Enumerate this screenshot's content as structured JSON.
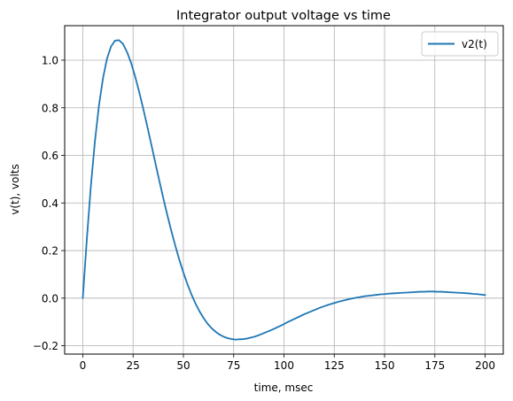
{
  "chart_data": {
    "type": "line",
    "title": "Integrator output voltage vs time",
    "xlabel": "time, msec",
    "ylabel": "v(t), volts",
    "xlim": [
      -9,
      209
    ],
    "ylim": [
      -0.235,
      1.145
    ],
    "xticks": [
      0,
      25,
      50,
      75,
      100,
      125,
      150,
      175,
      200
    ],
    "xtick_labels": [
      "0",
      "25",
      "50",
      "75",
      "100",
      "125",
      "150",
      "175",
      "200"
    ],
    "yticks": [
      -0.2,
      0.0,
      0.2,
      0.4,
      0.6,
      0.8,
      1.0
    ],
    "ytick_labels": [
      "−0.2",
      "0.0",
      "0.2",
      "0.4",
      "0.6",
      "0.8",
      "1.0"
    ],
    "grid": true,
    "legend_position": "top-right",
    "series": [
      {
        "name": "v2(t)",
        "color": "#1f77b4",
        "x": [
          0,
          2,
          4,
          6,
          8,
          10,
          12,
          14,
          16,
          18,
          20,
          22,
          24,
          26,
          28,
          30,
          32,
          34,
          36,
          38,
          40,
          42,
          44,
          46,
          48,
          50,
          52,
          54,
          56,
          58,
          60,
          62,
          64,
          66,
          68,
          70,
          72,
          74,
          76,
          78,
          80,
          82,
          84,
          86,
          88,
          90,
          92,
          94,
          96,
          98,
          100,
          102,
          104,
          106,
          108,
          110,
          112,
          114,
          116,
          118,
          120,
          122,
          124,
          126,
          128,
          130,
          132,
          134,
          136,
          138,
          140,
          142,
          144,
          146,
          148,
          150,
          152,
          154,
          156,
          158,
          160,
          162,
          164,
          166,
          168,
          170,
          172,
          174,
          176,
          178,
          180,
          182,
          184,
          186,
          188,
          190,
          192,
          194,
          196,
          198,
          200
        ],
        "y": [
          0.0,
          0.246,
          0.469,
          0.656,
          0.807,
          0.922,
          1.005,
          1.057,
          1.082,
          1.084,
          1.068,
          1.034,
          0.989,
          0.932,
          0.868,
          0.798,
          0.724,
          0.648,
          0.571,
          0.495,
          0.421,
          0.35,
          0.283,
          0.22,
          0.161,
          0.108,
          0.059,
          0.016,
          -0.022,
          -0.055,
          -0.083,
          -0.107,
          -0.126,
          -0.141,
          -0.153,
          -0.162,
          -0.168,
          -0.172,
          -0.174,
          -0.173,
          -0.172,
          -0.169,
          -0.165,
          -0.16,
          -0.154,
          -0.147,
          -0.14,
          -0.133,
          -0.125,
          -0.117,
          -0.109,
          -0.1,
          -0.092,
          -0.084,
          -0.076,
          -0.068,
          -0.061,
          -0.054,
          -0.047,
          -0.04,
          -0.034,
          -0.028,
          -0.023,
          -0.018,
          -0.013,
          -0.009,
          -0.005,
          -0.001,
          0.002,
          0.005,
          0.008,
          0.01,
          0.012,
          0.014,
          0.016,
          0.017,
          0.019,
          0.02,
          0.021,
          0.022,
          0.023,
          0.024,
          0.025,
          0.026,
          0.027,
          0.027,
          0.028,
          0.028,
          0.027,
          0.027,
          0.026,
          0.025,
          0.024,
          0.023,
          0.022,
          0.021,
          0.02,
          0.018,
          0.017,
          0.015,
          0.013
        ]
      }
    ]
  }
}
